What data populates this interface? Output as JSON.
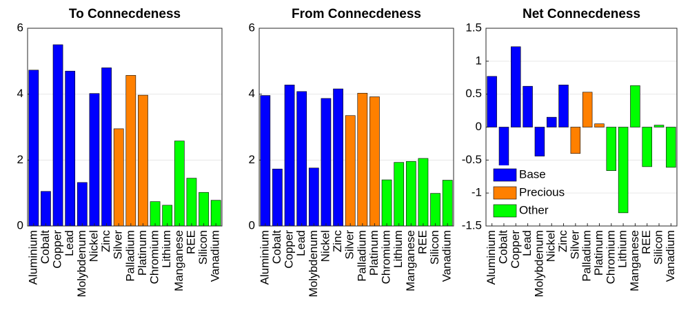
{
  "chart_data": [
    {
      "type": "bar",
      "title": "To Connecdeness",
      "categories": [
        "Aluminium",
        "Cobalt",
        "Copper",
        "Lead",
        "Molybdenum",
        "Nickel",
        "Zinc",
        "Silver",
        "Palladium",
        "Platinum",
        "Chromium",
        "Lithium",
        "Manganese",
        "REE",
        "Silicon",
        "Vanadium"
      ],
      "values": [
        4.73,
        1.05,
        5.5,
        4.7,
        1.32,
        4.02,
        4.8,
        2.95,
        4.57,
        3.97,
        0.74,
        0.63,
        2.58,
        1.45,
        1.02,
        0.78
      ],
      "colors": [
        "#0000ff",
        "#0000ff",
        "#0000ff",
        "#0000ff",
        "#0000ff",
        "#0000ff",
        "#0000ff",
        "#ff8000",
        "#ff8000",
        "#ff8000",
        "#00ff00",
        "#00ff00",
        "#00ff00",
        "#00ff00",
        "#00ff00",
        "#00ff00"
      ],
      "ylim": [
        0,
        6
      ],
      "yticks": [
        0,
        2,
        4,
        6
      ],
      "grid": true
    },
    {
      "type": "bar",
      "title": "From Connecdeness",
      "categories": [
        "Aluminium",
        "Cobalt",
        "Copper",
        "Lead",
        "Molybdenum",
        "Nickel",
        "Zinc",
        "Silver",
        "Palladium",
        "Platinum",
        "Chromium",
        "Lithium",
        "Manganese",
        "REE",
        "Silicon",
        "Vanadium"
      ],
      "values": [
        3.96,
        1.73,
        4.28,
        4.08,
        1.76,
        3.87,
        4.16,
        3.35,
        4.03,
        3.92,
        1.4,
        1.93,
        1.96,
        2.05,
        0.99,
        1.39
      ],
      "colors": [
        "#0000ff",
        "#0000ff",
        "#0000ff",
        "#0000ff",
        "#0000ff",
        "#0000ff",
        "#0000ff",
        "#ff8000",
        "#ff8000",
        "#ff8000",
        "#00ff00",
        "#00ff00",
        "#00ff00",
        "#00ff00",
        "#00ff00",
        "#00ff00"
      ],
      "ylim": [
        0,
        6
      ],
      "yticks": [
        0,
        2,
        4,
        6
      ],
      "grid": true
    },
    {
      "type": "bar",
      "title": "Net Connecdeness",
      "categories": [
        "Aluminium",
        "Cobalt",
        "Copper",
        "Lead",
        "Molybdenum",
        "Nickel",
        "Zinc",
        "Silver",
        "Palladium",
        "Platinum",
        "Chromium",
        "Lithium",
        "Manganese",
        "REE",
        "Silicon",
        "Vanadium"
      ],
      "values": [
        0.77,
        -0.68,
        1.22,
        0.62,
        -0.44,
        0.15,
        0.64,
        -0.4,
        0.53,
        0.05,
        -0.66,
        -1.3,
        0.63,
        -0.6,
        0.03,
        -0.61
      ],
      "colors": [
        "#0000ff",
        "#0000ff",
        "#0000ff",
        "#0000ff",
        "#0000ff",
        "#0000ff",
        "#0000ff",
        "#ff8000",
        "#ff8000",
        "#ff8000",
        "#00ff00",
        "#00ff00",
        "#00ff00",
        "#00ff00",
        "#00ff00",
        "#00ff00"
      ],
      "ylim": [
        -1.5,
        1.5
      ],
      "yticks": [
        -1.5,
        -1,
        -0.5,
        0,
        0.5,
        1,
        1.5
      ],
      "grid": true,
      "legend": [
        {
          "name": "Base",
          "color": "#0000ff"
        },
        {
          "name": "Precious",
          "color": "#ff8000"
        },
        {
          "name": "Other",
          "color": "#00ff00"
        }
      ]
    }
  ]
}
